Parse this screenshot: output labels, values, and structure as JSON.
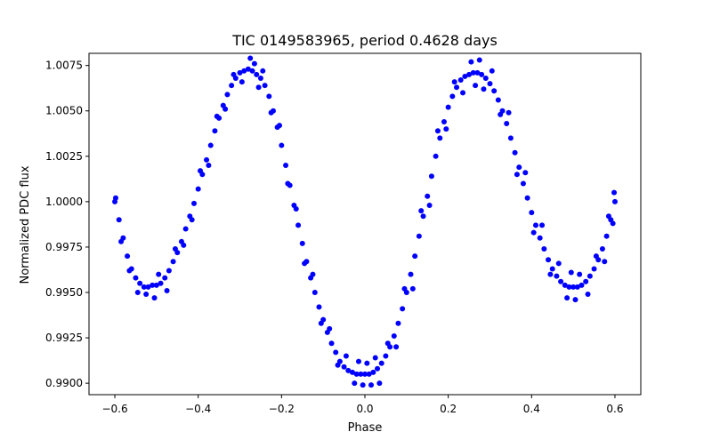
{
  "chart_data": {
    "type": "scatter",
    "title": "TIC 0149583965, period 0.4628 days",
    "xlabel": "Phase",
    "ylabel": "Normalized PDC flux",
    "xlim": [
      -0.662,
      0.662
    ],
    "ylim": [
      0.98937,
      1.00817
    ],
    "xticks": [
      -0.6,
      -0.4,
      -0.2,
      0.0,
      0.2,
      0.4,
      0.6
    ],
    "xtick_labels": [
      "−0.6",
      "−0.4",
      "−0.2",
      "0.0",
      "0.2",
      "0.4",
      "0.6"
    ],
    "yticks": [
      0.99,
      0.9925,
      0.995,
      0.9975,
      1.0,
      1.0025,
      1.005,
      1.0075
    ],
    "ytick_labels": [
      "0.9900",
      "0.9925",
      "0.9950",
      "0.9975",
      "1.0000",
      "1.0025",
      "1.0050",
      "1.0075"
    ],
    "grid": false,
    "marker_color": "#0000ff",
    "series": [
      {
        "name": "",
        "points": [
          [
            -0.6,
            1.0
          ],
          [
            -0.59,
            0.999
          ],
          [
            -0.58,
            0.998
          ],
          [
            -0.57,
            0.997
          ],
          [
            -0.56,
            0.9963
          ],
          [
            -0.55,
            0.9958
          ],
          [
            -0.54,
            0.9955
          ],
          [
            -0.53,
            0.9953
          ],
          [
            -0.52,
            0.9953
          ],
          [
            -0.51,
            0.9954
          ],
          [
            -0.5,
            0.9954
          ],
          [
            -0.49,
            0.9955
          ],
          [
            -0.48,
            0.9958
          ],
          [
            -0.47,
            0.9962
          ],
          [
            -0.46,
            0.9967
          ],
          [
            -0.45,
            0.9972
          ],
          [
            -0.44,
            0.9978
          ],
          [
            -0.43,
            0.9985
          ],
          [
            -0.42,
            0.9992
          ],
          [
            -0.41,
            0.9999
          ],
          [
            -0.4,
            1.0007
          ],
          [
            -0.39,
            1.0015
          ],
          [
            -0.38,
            1.0023
          ],
          [
            -0.37,
            1.0031
          ],
          [
            -0.36,
            1.0039
          ],
          [
            -0.35,
            1.0046
          ],
          [
            -0.34,
            1.0053
          ],
          [
            -0.33,
            1.0059
          ],
          [
            -0.32,
            1.0064
          ],
          [
            -0.31,
            1.0068
          ],
          [
            -0.3,
            1.0071
          ],
          [
            -0.29,
            1.0072
          ],
          [
            -0.28,
            1.0073
          ],
          [
            -0.27,
            1.0072
          ],
          [
            -0.26,
            1.007
          ],
          [
            -0.25,
            1.0068
          ],
          [
            -0.24,
            1.0064
          ],
          [
            -0.23,
            1.0058
          ],
          [
            -0.22,
            1.005
          ],
          [
            -0.21,
            1.0041
          ],
          [
            -0.2,
            1.0031
          ],
          [
            -0.19,
            1.002
          ],
          [
            -0.18,
            1.0009
          ],
          [
            -0.17,
            0.9998
          ],
          [
            -0.16,
            0.9987
          ],
          [
            -0.15,
            0.9977
          ],
          [
            -0.14,
            0.9967
          ],
          [
            -0.13,
            0.9958
          ],
          [
            -0.12,
            0.995
          ],
          [
            -0.11,
            0.9942
          ],
          [
            -0.1,
            0.9935
          ],
          [
            -0.09,
            0.9928
          ],
          [
            -0.08,
            0.9922
          ],
          [
            -0.07,
            0.9917
          ],
          [
            -0.06,
            0.9912
          ],
          [
            -0.05,
            0.9909
          ],
          [
            -0.04,
            0.9907
          ],
          [
            -0.03,
            0.9906
          ],
          [
            -0.02,
            0.9905
          ],
          [
            -0.01,
            0.9905
          ],
          [
            0.0,
            0.9905
          ],
          [
            0.01,
            0.9905
          ],
          [
            0.02,
            0.9906
          ],
          [
            0.03,
            0.9908
          ],
          [
            0.04,
            0.9911
          ],
          [
            0.05,
            0.9915
          ],
          [
            0.06,
            0.992
          ],
          [
            0.07,
            0.9926
          ],
          [
            0.08,
            0.9933
          ],
          [
            0.09,
            0.9941
          ],
          [
            0.1,
            0.995
          ],
          [
            0.11,
            0.996
          ],
          [
            0.12,
            0.997
          ],
          [
            0.13,
            0.9981
          ],
          [
            0.14,
            0.9992
          ],
          [
            0.15,
            1.0003
          ],
          [
            0.16,
            1.0014
          ],
          [
            0.17,
            1.0025
          ],
          [
            0.18,
            1.0035
          ],
          [
            0.19,
            1.0044
          ],
          [
            0.2,
            1.0052
          ],
          [
            0.21,
            1.0058
          ],
          [
            0.22,
            1.0063
          ],
          [
            0.23,
            1.0067
          ],
          [
            0.24,
            1.0069
          ],
          [
            0.25,
            1.007
          ],
          [
            0.26,
            1.0071
          ],
          [
            0.27,
            1.0071
          ],
          [
            0.28,
            1.007
          ],
          [
            0.29,
            1.0068
          ],
          [
            0.3,
            1.0065
          ],
          [
            0.31,
            1.0061
          ],
          [
            0.32,
            1.0056
          ],
          [
            0.33,
            1.005
          ],
          [
            0.34,
            1.0043
          ],
          [
            0.35,
            1.0035
          ],
          [
            0.36,
            1.0027
          ],
          [
            0.37,
            1.0019
          ],
          [
            0.38,
            1.001
          ],
          [
            0.39,
            1.0002
          ],
          [
            0.4,
            0.9994
          ],
          [
            0.41,
            0.9987
          ],
          [
            0.42,
            0.998
          ],
          [
            0.43,
            0.9974
          ],
          [
            0.44,
            0.9968
          ],
          [
            0.45,
            0.9963
          ],
          [
            0.46,
            0.9959
          ],
          [
            0.47,
            0.9956
          ],
          [
            0.48,
            0.9954
          ],
          [
            0.49,
            0.9953
          ],
          [
            0.5,
            0.9953
          ],
          [
            0.51,
            0.9953
          ],
          [
            0.52,
            0.9954
          ],
          [
            0.53,
            0.9956
          ],
          [
            0.54,
            0.9959
          ],
          [
            0.55,
            0.9963
          ],
          [
            0.56,
            0.9968
          ],
          [
            0.57,
            0.9974
          ],
          [
            0.58,
            0.9981
          ],
          [
            0.59,
            0.999
          ],
          [
            0.6,
            1.0
          ],
          [
            -0.598,
            1.0002
          ],
          [
            -0.585,
            0.9978
          ],
          [
            -0.565,
            0.9962
          ],
          [
            -0.545,
            0.995
          ],
          [
            -0.525,
            0.9949
          ],
          [
            -0.505,
            0.9947
          ],
          [
            -0.495,
            0.996
          ],
          [
            -0.475,
            0.9951
          ],
          [
            -0.455,
            0.9974
          ],
          [
            -0.435,
            0.9976
          ],
          [
            -0.415,
            0.999
          ],
          [
            -0.395,
            1.0017
          ],
          [
            -0.375,
            1.002
          ],
          [
            -0.355,
            1.0047
          ],
          [
            -0.335,
            1.0051
          ],
          [
            -0.315,
            1.007
          ],
          [
            -0.295,
            1.0066
          ],
          [
            -0.275,
            1.0079
          ],
          [
            -0.265,
            1.0076
          ],
          [
            -0.255,
            1.0063
          ],
          [
            -0.245,
            1.0072
          ],
          [
            -0.225,
            1.0049
          ],
          [
            -0.205,
            1.0042
          ],
          [
            -0.185,
            1.001
          ],
          [
            -0.165,
            0.9996
          ],
          [
            -0.145,
            0.9966
          ],
          [
            -0.125,
            0.996
          ],
          [
            -0.105,
            0.9933
          ],
          [
            -0.085,
            0.993
          ],
          [
            -0.065,
            0.991
          ],
          [
            -0.045,
            0.9915
          ],
          [
            -0.025,
            0.99
          ],
          [
            -0.015,
            0.9912
          ],
          [
            -0.005,
            0.9899
          ],
          [
            0.005,
            0.9911
          ],
          [
            0.015,
            0.9899
          ],
          [
            0.025,
            0.9914
          ],
          [
            0.035,
            0.99
          ],
          [
            0.055,
            0.9922
          ],
          [
            0.075,
            0.992
          ],
          [
            0.095,
            0.9952
          ],
          [
            0.115,
            0.9952
          ],
          [
            0.135,
            0.9995
          ],
          [
            0.155,
            0.9998
          ],
          [
            0.175,
            1.0039
          ],
          [
            0.195,
            1.004
          ],
          [
            0.215,
            1.0066
          ],
          [
            0.235,
            1.006
          ],
          [
            0.255,
            1.0077
          ],
          [
            0.265,
            1.0064
          ],
          [
            0.275,
            1.0078
          ],
          [
            0.285,
            1.0062
          ],
          [
            0.305,
            1.0072
          ],
          [
            0.325,
            1.0048
          ],
          [
            0.345,
            1.0049
          ],
          [
            0.365,
            1.0015
          ],
          [
            0.385,
            1.0016
          ],
          [
            0.405,
            0.9983
          ],
          [
            0.425,
            0.9987
          ],
          [
            0.445,
            0.996
          ],
          [
            0.465,
            0.9966
          ],
          [
            0.485,
            0.9947
          ],
          [
            0.495,
            0.9961
          ],
          [
            0.505,
            0.9946
          ],
          [
            0.515,
            0.996
          ],
          [
            0.535,
            0.9949
          ],
          [
            0.555,
            0.997
          ],
          [
            0.575,
            0.9967
          ],
          [
            0.585,
            0.9992
          ],
          [
            0.595,
            0.9988
          ],
          [
            0.598,
            1.0005
          ]
        ]
      }
    ]
  }
}
